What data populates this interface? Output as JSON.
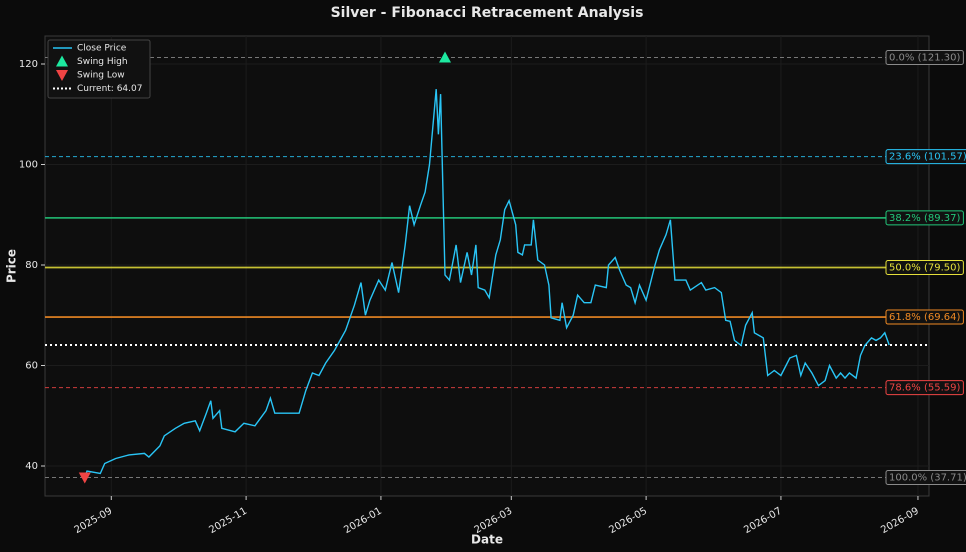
{
  "chart_data": {
    "type": "line",
    "title": "Silver - Fibonacci Retracement Analysis",
    "x_label": "Date",
    "y_label": "Price",
    "x": [
      0,
      1,
      7,
      9,
      14,
      20,
      27,
      29,
      34,
      36,
      41,
      45,
      50,
      52,
      55,
      57,
      58,
      61,
      62,
      68,
      72,
      77,
      82,
      84,
      86,
      93,
      97,
      100,
      103,
      106,
      109,
      113,
      118,
      122,
      125,
      127,
      129,
      133,
      136,
      139,
      142,
      145,
      147,
      149,
      152,
      154,
      156,
      159,
      160,
      161,
      163,
      165,
      168,
      170,
      173,
      175,
      177,
      178,
      181,
      183,
      186,
      188,
      190,
      192,
      195,
      196,
      198,
      199,
      202,
      203,
      205,
      208,
      210,
      211,
      215,
      216,
      218,
      221,
      223,
      226,
      229,
      231,
      236,
      237,
      240,
      242,
      245,
      247,
      249,
      251,
      254,
      258,
      260,
      263,
      265,
      267,
      272,
      274,
      279,
      281,
      285,
      288,
      290,
      292,
      294,
      297,
      299,
      302,
      303,
      307,
      309,
      312,
      315,
      319,
      322,
      324,
      326,
      329,
      332,
      335,
      337,
      340,
      342,
      344,
      346,
      349,
      351,
      353,
      356,
      358,
      360,
      362,
      364
    ],
    "series": [
      {
        "name": "Close Price",
        "color": "#29c5f6",
        "values": [
          37.71,
          39,
          38.5,
          40.5,
          41.5,
          42.2,
          42.5,
          41.8,
          44,
          46,
          47.5,
          48.5,
          49,
          47,
          50.5,
          53,
          49.5,
          51,
          47.5,
          46.8,
          48.5,
          48,
          51,
          53.5,
          50.5,
          50.5,
          50.5,
          55,
          58.5,
          58,
          60.5,
          63,
          67,
          72,
          76.5,
          70,
          73,
          77,
          75,
          80.5,
          74.5,
          84,
          91.8,
          88,
          92,
          94.5,
          100,
          115,
          106,
          114,
          78,
          77,
          84,
          76.5,
          82.5,
          78,
          84,
          75.5,
          75,
          73.5,
          82,
          85,
          91,
          92.8,
          88,
          82.5,
          82,
          84,
          84,
          89,
          81,
          80,
          76,
          69.5,
          69,
          72.5,
          67.5,
          70,
          74,
          72.5,
          72.5,
          76,
          75.5,
          80,
          81.5,
          79,
          76,
          75.5,
          72.5,
          76,
          73,
          80,
          83,
          86,
          89,
          77,
          77,
          75,
          76.5,
          75,
          75.5,
          74.5,
          69,
          68.8,
          65,
          64,
          68,
          70.5,
          66.5,
          65.5,
          58,
          59,
          58,
          61.5,
          62,
          58,
          60.5,
          58.5,
          56,
          57,
          60,
          57.5,
          58.5,
          57.5,
          58.5,
          57.5,
          62,
          64,
          65.5,
          65,
          65.5,
          66.5,
          64.07
        ]
      }
    ],
    "swing_high": {
      "name": "Swing High",
      "x": 163,
      "value": 121.3,
      "color": "#1de9a0"
    },
    "swing_low": {
      "name": "Swing Low",
      "x": 0,
      "value": 37.71,
      "color": "#ef4444"
    },
    "current": {
      "name": "Current: 64.07",
      "value": 64.07,
      "color": "#ffffff"
    },
    "levels": [
      {
        "label": "0.0% (121.30)",
        "value": 121.3,
        "color": "#8a8a8a",
        "dashed": true
      },
      {
        "label": "23.6% (101.57)",
        "value": 101.57,
        "color": "#29c5f6",
        "dashed": true
      },
      {
        "label": "38.2% (89.37)",
        "value": 89.37,
        "color": "#22c77a",
        "dashed": false
      },
      {
        "label": "50.0% (79.50)",
        "value": 79.5,
        "color": "#e5e03a",
        "dashed": false
      },
      {
        "label": "61.8% (69.64)",
        "value": 69.64,
        "color": "#f08a24",
        "dashed": false
      },
      {
        "label": "78.6% (55.59)",
        "value": 55.59,
        "color": "#ef4444",
        "dashed": true
      },
      {
        "label": "100.0% (37.71)",
        "value": 37.71,
        "color": "#8a8a8a",
        "dashed": true
      }
    ],
    "xlim": [
      -18,
      382
    ],
    "xticks": [
      {
        "value": 12,
        "label": "2025-09"
      },
      {
        "value": 73,
        "label": "2025-11"
      },
      {
        "value": 134,
        "label": "2026-01"
      },
      {
        "value": 193,
        "label": "2026-03"
      },
      {
        "value": 254,
        "label": "2026-05"
      },
      {
        "value": 315,
        "label": "2026-07"
      },
      {
        "value": 377,
        "label": "2026-09"
      }
    ],
    "ylim": [
      34.03,
      125.57
    ],
    "yticks": [
      40,
      60,
      80,
      100,
      120
    ],
    "grid": true,
    "legend": "upper left"
  }
}
